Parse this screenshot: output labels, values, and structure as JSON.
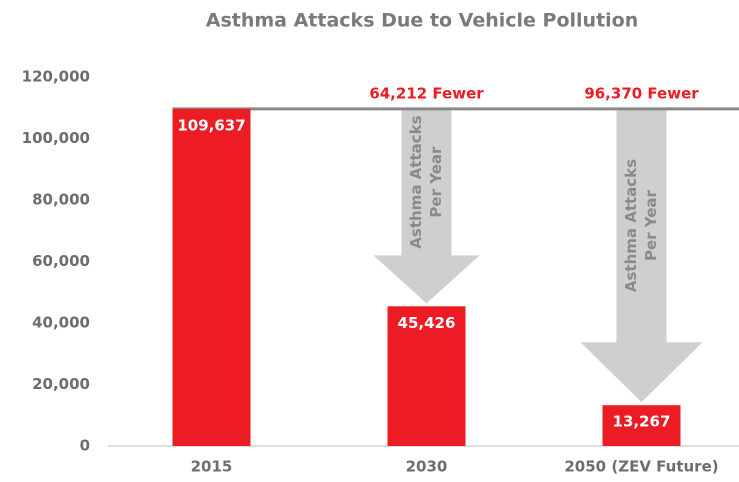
{
  "chart_data": {
    "type": "bar",
    "title": "Asthma Attacks Due to Vehicle Pollution",
    "categories": [
      "2015",
      "2030",
      "2050 (ZEV Future)"
    ],
    "values": [
      109637,
      45426,
      13267
    ],
    "value_labels": [
      "109,637",
      "45,426",
      "13,267"
    ],
    "color": "#ed1c24",
    "ylim": [
      0,
      120000
    ],
    "yticks": [
      0,
      {
        "value": 20000,
        "label": "20,000"
      },
      {
        "value": 40000,
        "label": "40,000"
      },
      {
        "value": 60000,
        "label": "60,000"
      },
      {
        "value": 80000,
        "label": "80,000"
      },
      {
        "value": 100000,
        "label": "100,000"
      },
      {
        "value": 120000,
        "label": "120,000"
      }
    ],
    "grid": false,
    "annotations": [
      "64,212 Fewer",
      "96,370 Fewer"
    ],
    "arrow_label": [
      "Asthma Attacks",
      "Per Year"
    ]
  }
}
